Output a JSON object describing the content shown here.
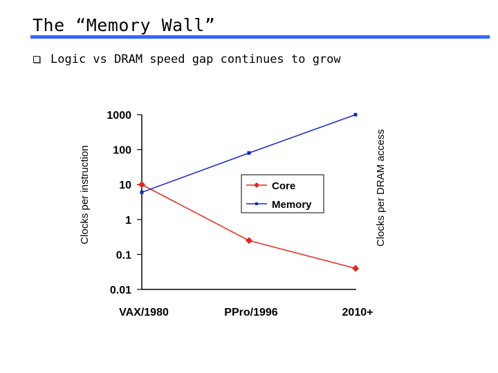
{
  "slide": {
    "title": "The “Memory Wall”",
    "bullet": "Logic vs DRAM speed gap continues to grow"
  },
  "chart_data": {
    "type": "line",
    "scale": "log",
    "categories": [
      "VAX/1980",
      "PPro/1996",
      "2010+"
    ],
    "series": [
      {
        "name": "Core",
        "color": "#e8231e",
        "marker": "diamond",
        "values": [
          10,
          0.25,
          0.04
        ]
      },
      {
        "name": "Memory",
        "color": "#1428c8",
        "marker": "square",
        "values": [
          6,
          80,
          1000
        ]
      }
    ],
    "y_ticks": [
      1000,
      100,
      10,
      1,
      0.1,
      0.01
    ],
    "y_tick_labels": [
      "1000",
      "100",
      "10",
      "1",
      "0.1",
      "0.01"
    ],
    "ylim": [
      0.01,
      1000
    ],
    "ylabel_left": "Clocks per instruction",
    "ylabel_right": "Clocks per DRAM access",
    "legend_position": "center-right",
    "grid": false
  }
}
